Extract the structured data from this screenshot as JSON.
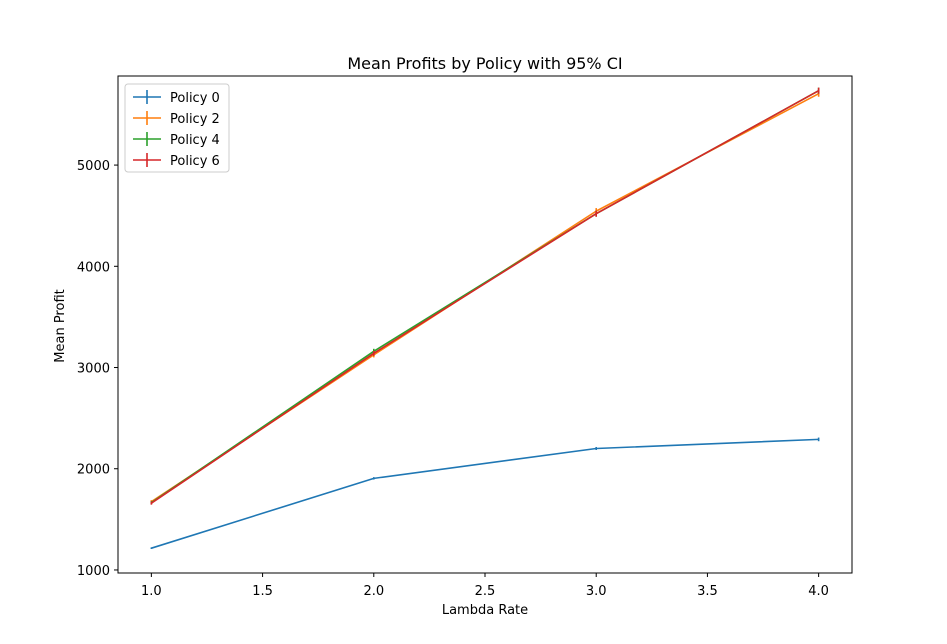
{
  "chart_data": {
    "type": "line",
    "title": "Mean Profits by Policy with 95% CI",
    "xlabel": "Lambda Rate",
    "ylabel": "Mean Profit",
    "x": [
      1.0,
      2.0,
      3.0,
      4.0
    ],
    "xlim": [
      0.85,
      4.15
    ],
    "ylim": [
      970,
      5880
    ],
    "xticks": [
      "1.0",
      "1.5",
      "2.0",
      "2.5",
      "3.0",
      "3.5",
      "4.0"
    ],
    "xtick_values": [
      1.0,
      1.5,
      2.0,
      2.5,
      3.0,
      3.5,
      4.0
    ],
    "yticks": [
      "1000",
      "2000",
      "3000",
      "4000",
      "5000"
    ],
    "ytick_values": [
      1000,
      2000,
      3000,
      4000,
      5000
    ],
    "grid": false,
    "legend_position": "top-left",
    "series": [
      {
        "name": "Policy 0",
        "color": "#1f77b4",
        "values": [
          1215,
          1905,
          2200,
          2290
        ],
        "ci": [
          8,
          12,
          15,
          18
        ]
      },
      {
        "name": "Policy 2",
        "color": "#ff7f0e",
        "values": [
          1675,
          3125,
          4545,
          5705
        ],
        "ci": [
          15,
          25,
          30,
          30
        ]
      },
      {
        "name": "Policy 4",
        "color": "#2ca02c",
        "values": [
          1665,
          3160,
          4520,
          5735
        ],
        "ci": [
          15,
          25,
          30,
          30
        ]
      },
      {
        "name": "Policy 6",
        "color": "#d62728",
        "values": [
          1660,
          3140,
          4520,
          5735
        ],
        "ci": [
          15,
          25,
          30,
          30
        ]
      }
    ]
  }
}
